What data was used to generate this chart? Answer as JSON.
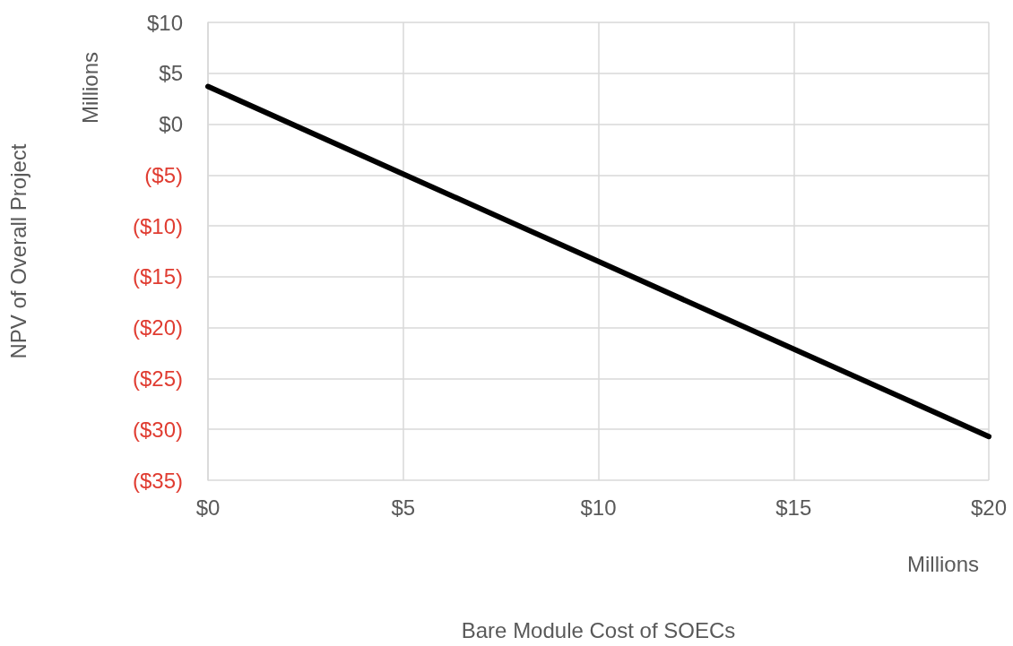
{
  "chart_data": {
    "type": "line",
    "xlabel": "Bare Module Cost of SOECs",
    "ylabel": "NPV of Overall Project",
    "annotations": [
      "Millions",
      "Millions"
    ],
    "x": [
      0,
      5,
      10,
      15,
      20
    ],
    "series": [
      {
        "color": "#000000",
        "values": [
          3.7,
          -4.9,
          -13.5,
          -22.1,
          -30.7
        ]
      }
    ],
    "xlim": [
      0,
      20
    ],
    "xticks": [
      {
        "value": 0,
        "label": "$0"
      },
      {
        "value": 5,
        "label": "$5"
      },
      {
        "value": 10,
        "label": "$10"
      },
      {
        "value": 15,
        "label": "$15"
      },
      {
        "value": 20,
        "label": "$20"
      }
    ],
    "ylim": [
      -35,
      10
    ],
    "yticks": [
      {
        "value": -35,
        "label": "($35)"
      },
      {
        "value": -30,
        "label": "($30)"
      },
      {
        "value": -25,
        "label": "($25)"
      },
      {
        "value": -20,
        "label": "($20)"
      },
      {
        "value": -15,
        "label": "($15)"
      },
      {
        "value": -10,
        "label": "($10)"
      },
      {
        "value": -5,
        "label": "($5)"
      },
      {
        "value": 0,
        "label": "$0"
      },
      {
        "value": 5,
        "label": "$5"
      },
      {
        "value": 10,
        "label": "$10"
      }
    ],
    "grid": true,
    "marker": "none",
    "line_style": "solid"
  }
}
